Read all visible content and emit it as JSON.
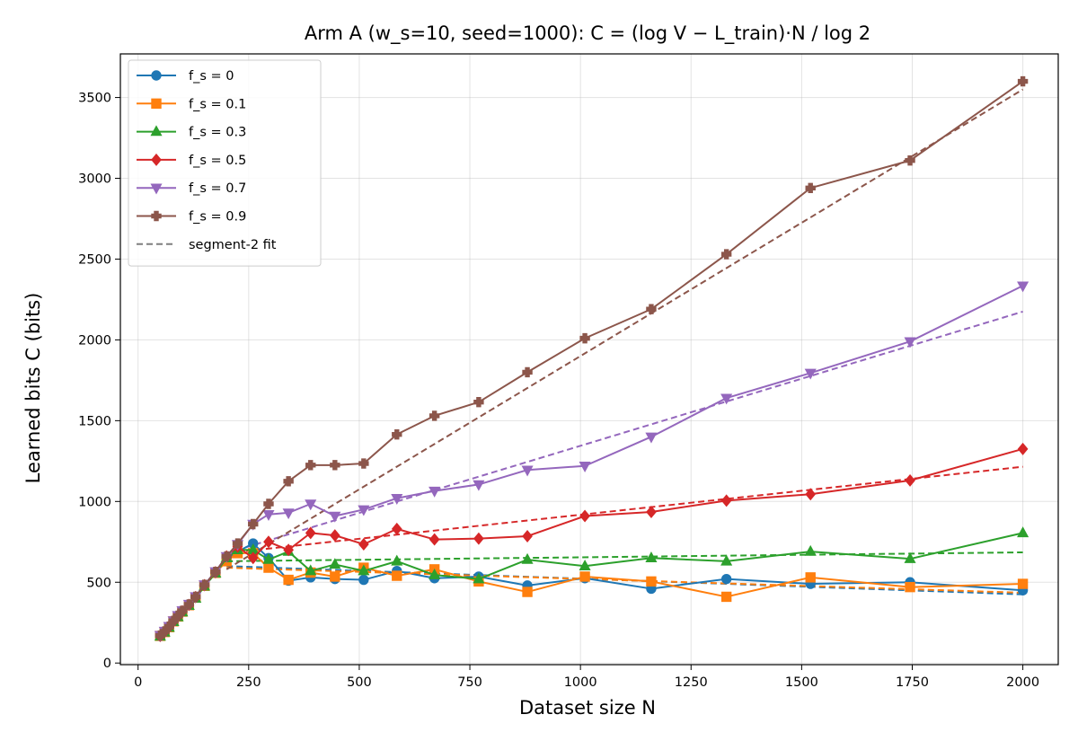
{
  "chart_data": {
    "type": "line",
    "title": "Arm A (w_s=10, seed=1000): C = (log V − L_train)·N / log 2",
    "xlabel": "Dataset size N",
    "ylabel": "Learned bits C (bits)",
    "xlim": [
      -40,
      2080
    ],
    "ylim": [
      -10,
      3770
    ],
    "xticks": [
      0,
      250,
      500,
      750,
      1000,
      1250,
      1500,
      1750,
      2000
    ],
    "yticks": [
      0,
      500,
      1000,
      1500,
      2000,
      2500,
      3000,
      3500
    ],
    "grid": true,
    "legend_position": "top-left",
    "x": [
      50,
      60,
      70,
      80,
      90,
      100,
      115,
      130,
      150,
      175,
      200,
      225,
      260,
      295,
      340,
      390,
      445,
      510,
      585,
      670,
      770,
      880,
      1010,
      1160,
      1330,
      1520,
      1745,
      2000
    ],
    "series": [
      {
        "name": "f_s = 0",
        "color": "#1f77b4",
        "marker": "circle",
        "values": [
          170,
          195,
          225,
          260,
          290,
          320,
          360,
          410,
          480,
          560,
          640,
          690,
          740,
          650,
          510,
          530,
          520,
          515,
          570,
          525,
          535,
          480,
          525,
          460,
          520,
          490,
          500,
          450
        ],
        "fit": [
          [
            200,
            600
          ],
          [
            2000,
            425
          ]
        ]
      },
      {
        "name": "f_s = 0.1",
        "color": "#ff7f0e",
        "marker": "square",
        "values": [
          168,
          192,
          222,
          258,
          288,
          318,
          358,
          405,
          478,
          558,
          630,
          680,
          680,
          590,
          515,
          560,
          535,
          590,
          540,
          580,
          505,
          440,
          535,
          505,
          410,
          530,
          470,
          490
        ],
        "fit": [
          [
            200,
            590
          ],
          [
            2000,
            435
          ]
        ]
      },
      {
        "name": "f_s = 0.3",
        "color": "#2ca02c",
        "marker": "triangle-up",
        "values": [
          165,
          190,
          220,
          255,
          285,
          315,
          355,
          400,
          475,
          555,
          650,
          700,
          700,
          640,
          690,
          570,
          610,
          570,
          630,
          545,
          520,
          640,
          600,
          650,
          630,
          690,
          645,
          805
        ],
        "fit": [
          [
            200,
            630
          ],
          [
            2000,
            685
          ]
        ]
      },
      {
        "name": "f_s = 0.5",
        "color": "#d62728",
        "marker": "diamond",
        "values": [
          168,
          194,
          224,
          259,
          290,
          320,
          360,
          408,
          482,
          562,
          660,
          720,
          650,
          750,
          700,
          805,
          790,
          735,
          830,
          765,
          770,
          785,
          910,
          935,
          1005,
          1045,
          1130,
          1325
        ],
        "fit": [
          [
            200,
            680
          ],
          [
            2000,
            1215
          ]
        ]
      },
      {
        "name": "f_s = 0.7",
        "color": "#9467bd",
        "marker": "triangle-down",
        "values": [
          172,
          198,
          228,
          263,
          295,
          325,
          365,
          412,
          486,
          566,
          660,
          735,
          860,
          920,
          930,
          985,
          910,
          950,
          1020,
          1065,
          1105,
          1195,
          1220,
          1400,
          1640,
          1795,
          1990,
          2335
        ],
        "fit": [
          [
            200,
            680
          ],
          [
            2000,
            2175
          ]
        ]
      },
      {
        "name": "f_s = 0.9",
        "color": "#8c564b",
        "marker": "plus-filled",
        "values": [
          170,
          196,
          226,
          261,
          293,
          323,
          363,
          410,
          484,
          564,
          660,
          740,
          860,
          985,
          1125,
          1225,
          1225,
          1235,
          1415,
          1530,
          1615,
          1800,
          2010,
          2190,
          2530,
          2940,
          3110,
          3600
        ],
        "fit": [
          [
            200,
            580
          ],
          [
            2000,
            3550
          ]
        ]
      }
    ],
    "fit_legend_label": "segment-2 fit",
    "fit_legend_color": "#7f7f7f"
  }
}
